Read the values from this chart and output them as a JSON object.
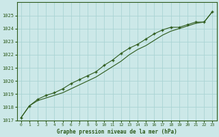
{
  "title": "Graphe pression niveau de la mer (hPa)",
  "background_color": "#cce8e8",
  "grid_color": "#aad4d4",
  "line_color": "#2d5a1b",
  "marker_color": "#2d5a1b",
  "x_data": [
    0,
    1,
    2,
    3,
    4,
    5,
    6,
    7,
    8,
    9,
    10,
    11,
    12,
    13,
    14,
    15,
    16,
    17,
    18,
    19,
    20,
    21,
    22,
    23
  ],
  "y_line1": [
    1017.2,
    1018.1,
    1018.5,
    1018.7,
    1018.9,
    1019.1,
    1019.4,
    1019.7,
    1020.0,
    1020.3,
    1020.7,
    1021.1,
    1021.5,
    1022.0,
    1022.4,
    1022.7,
    1023.1,
    1023.5,
    1023.8,
    1024.0,
    1024.2,
    1024.4,
    1024.5,
    1025.3
  ],
  "y_line2": [
    1017.2,
    1018.1,
    1018.6,
    1018.9,
    1019.1,
    1019.4,
    1019.8,
    1020.1,
    1020.4,
    1020.7,
    1021.2,
    1021.6,
    1022.1,
    1022.5,
    1022.8,
    1023.2,
    1023.6,
    1023.9,
    1024.1,
    1024.1,
    1024.3,
    1024.5,
    1024.5,
    1025.3
  ],
  "ylim": [
    1017,
    1026
  ],
  "xlim": [
    -0.5,
    23.5
  ],
  "yticks": [
    1017,
    1018,
    1019,
    1020,
    1021,
    1022,
    1023,
    1024,
    1025
  ],
  "xticks": [
    0,
    1,
    2,
    3,
    4,
    5,
    6,
    7,
    8,
    9,
    10,
    11,
    12,
    13,
    14,
    15,
    16,
    17,
    18,
    19,
    20,
    21,
    22,
    23
  ]
}
